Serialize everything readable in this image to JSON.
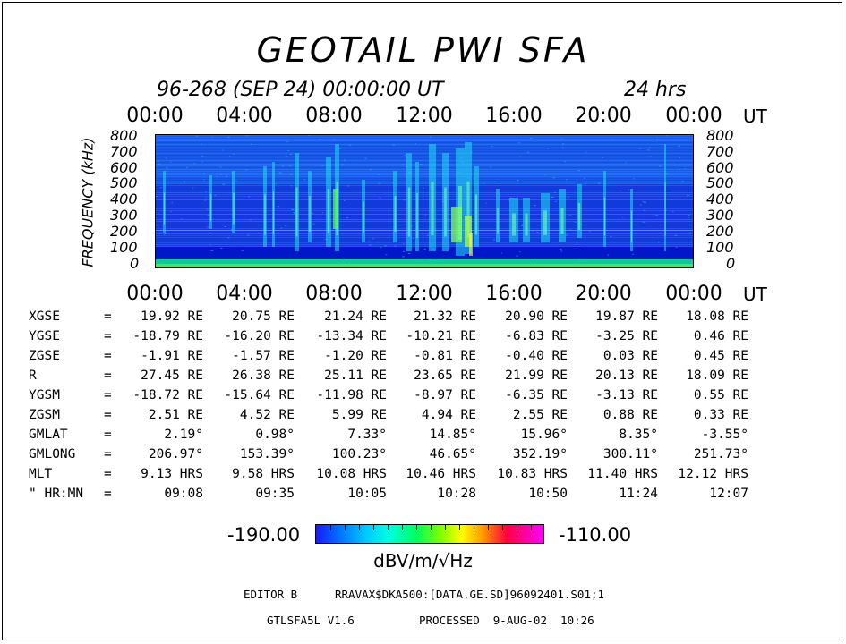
{
  "title": "GEOTAIL  PWI  SFA",
  "dateline": "96-268 (SEP 24) 00:00:00 UT",
  "duration": "24 hrs",
  "time_ticks": [
    "00:00",
    "04:00",
    "08:00",
    "12:00",
    "16:00",
    "20:00",
    "00:00"
  ],
  "time_unit": "UT",
  "chart_data": {
    "type": "heatmap",
    "ylabel": "FREQUENCY (kHz)",
    "ylim": [
      0,
      800
    ],
    "y_ticks": [
      "800",
      "700",
      "600",
      "500",
      "400",
      "300",
      "200",
      "100",
      "0"
    ],
    "x_ticks": [
      "00:00",
      "04:00",
      "08:00",
      "12:00",
      "16:00",
      "20:00",
      "00:00"
    ],
    "x_unit": "UT",
    "colorbar": {
      "min": "-190.00",
      "max": "-110.00",
      "unit": "dBV/m/√Hz"
    },
    "colors": {
      "background": "#1a46e0",
      "low": "#1a1aff",
      "mid": "#00ffe0",
      "high": "#ff00ff"
    }
  },
  "ephemeris": {
    "rows": [
      {
        "label": "XGSE",
        "values": [
          "19.92 RE",
          "20.75 RE",
          "21.24 RE",
          "21.32 RE",
          "20.90 RE",
          "19.87 RE",
          "18.08 RE"
        ]
      },
      {
        "label": "YGSE",
        "values": [
          "-18.79 RE",
          "-16.20 RE",
          "-13.34 RE",
          "-10.21 RE",
          "-6.83 RE",
          "-3.25 RE",
          "0.46 RE"
        ]
      },
      {
        "label": "ZGSE",
        "values": [
          "-1.91 RE",
          "-1.57 RE",
          "-1.20 RE",
          "-0.81 RE",
          "-0.40 RE",
          "0.03 RE",
          "0.45 RE"
        ]
      },
      {
        "label": "R",
        "values": [
          "27.45 RE",
          "26.38 RE",
          "25.11 RE",
          "23.65 RE",
          "21.99 RE",
          "20.13 RE",
          "18.09 RE"
        ]
      },
      {
        "label": "YGSM",
        "values": [
          "-18.72 RE",
          "-15.64 RE",
          "-11.98 RE",
          "-8.97 RE",
          "-6.35 RE",
          "-3.13 RE",
          "0.55 RE"
        ]
      },
      {
        "label": "ZGSM",
        "values": [
          "2.51 RE",
          "4.52 RE",
          "5.99 RE",
          "4.94 RE",
          "2.55 RE",
          "0.88 RE",
          "0.33 RE"
        ]
      },
      {
        "label": "GMLAT",
        "values": [
          "2.19°",
          "0.98°",
          "7.33°",
          "14.85°",
          "15.96°",
          "8.35°",
          "-3.55°"
        ]
      },
      {
        "label": "GMLONG",
        "values": [
          "206.97°",
          "153.39°",
          "100.23°",
          "46.65°",
          "352.19°",
          "300.11°",
          "251.73°"
        ]
      },
      {
        "label": "MLT",
        "values": [
          "9.13 HRS",
          "9.58 HRS",
          "10.08 HRS",
          "10.46 HRS",
          "10.83 HRS",
          "11.40 HRS",
          "12.12 HRS"
        ]
      },
      {
        "label": "\" HR:MN",
        "values": [
          "09:08",
          "09:35",
          "10:05",
          "10:28",
          "10:50",
          "11:24",
          "12:07"
        ]
      }
    ],
    "eq": "="
  },
  "footer": {
    "editor": "EDITOR B",
    "path": "RRAVAX$DKA500:[DATA.GE.SD]96092401.S01;1",
    "version": "GTLSFA5L V1.6",
    "processed": "PROCESSED  9-AUG-02  10:26"
  }
}
